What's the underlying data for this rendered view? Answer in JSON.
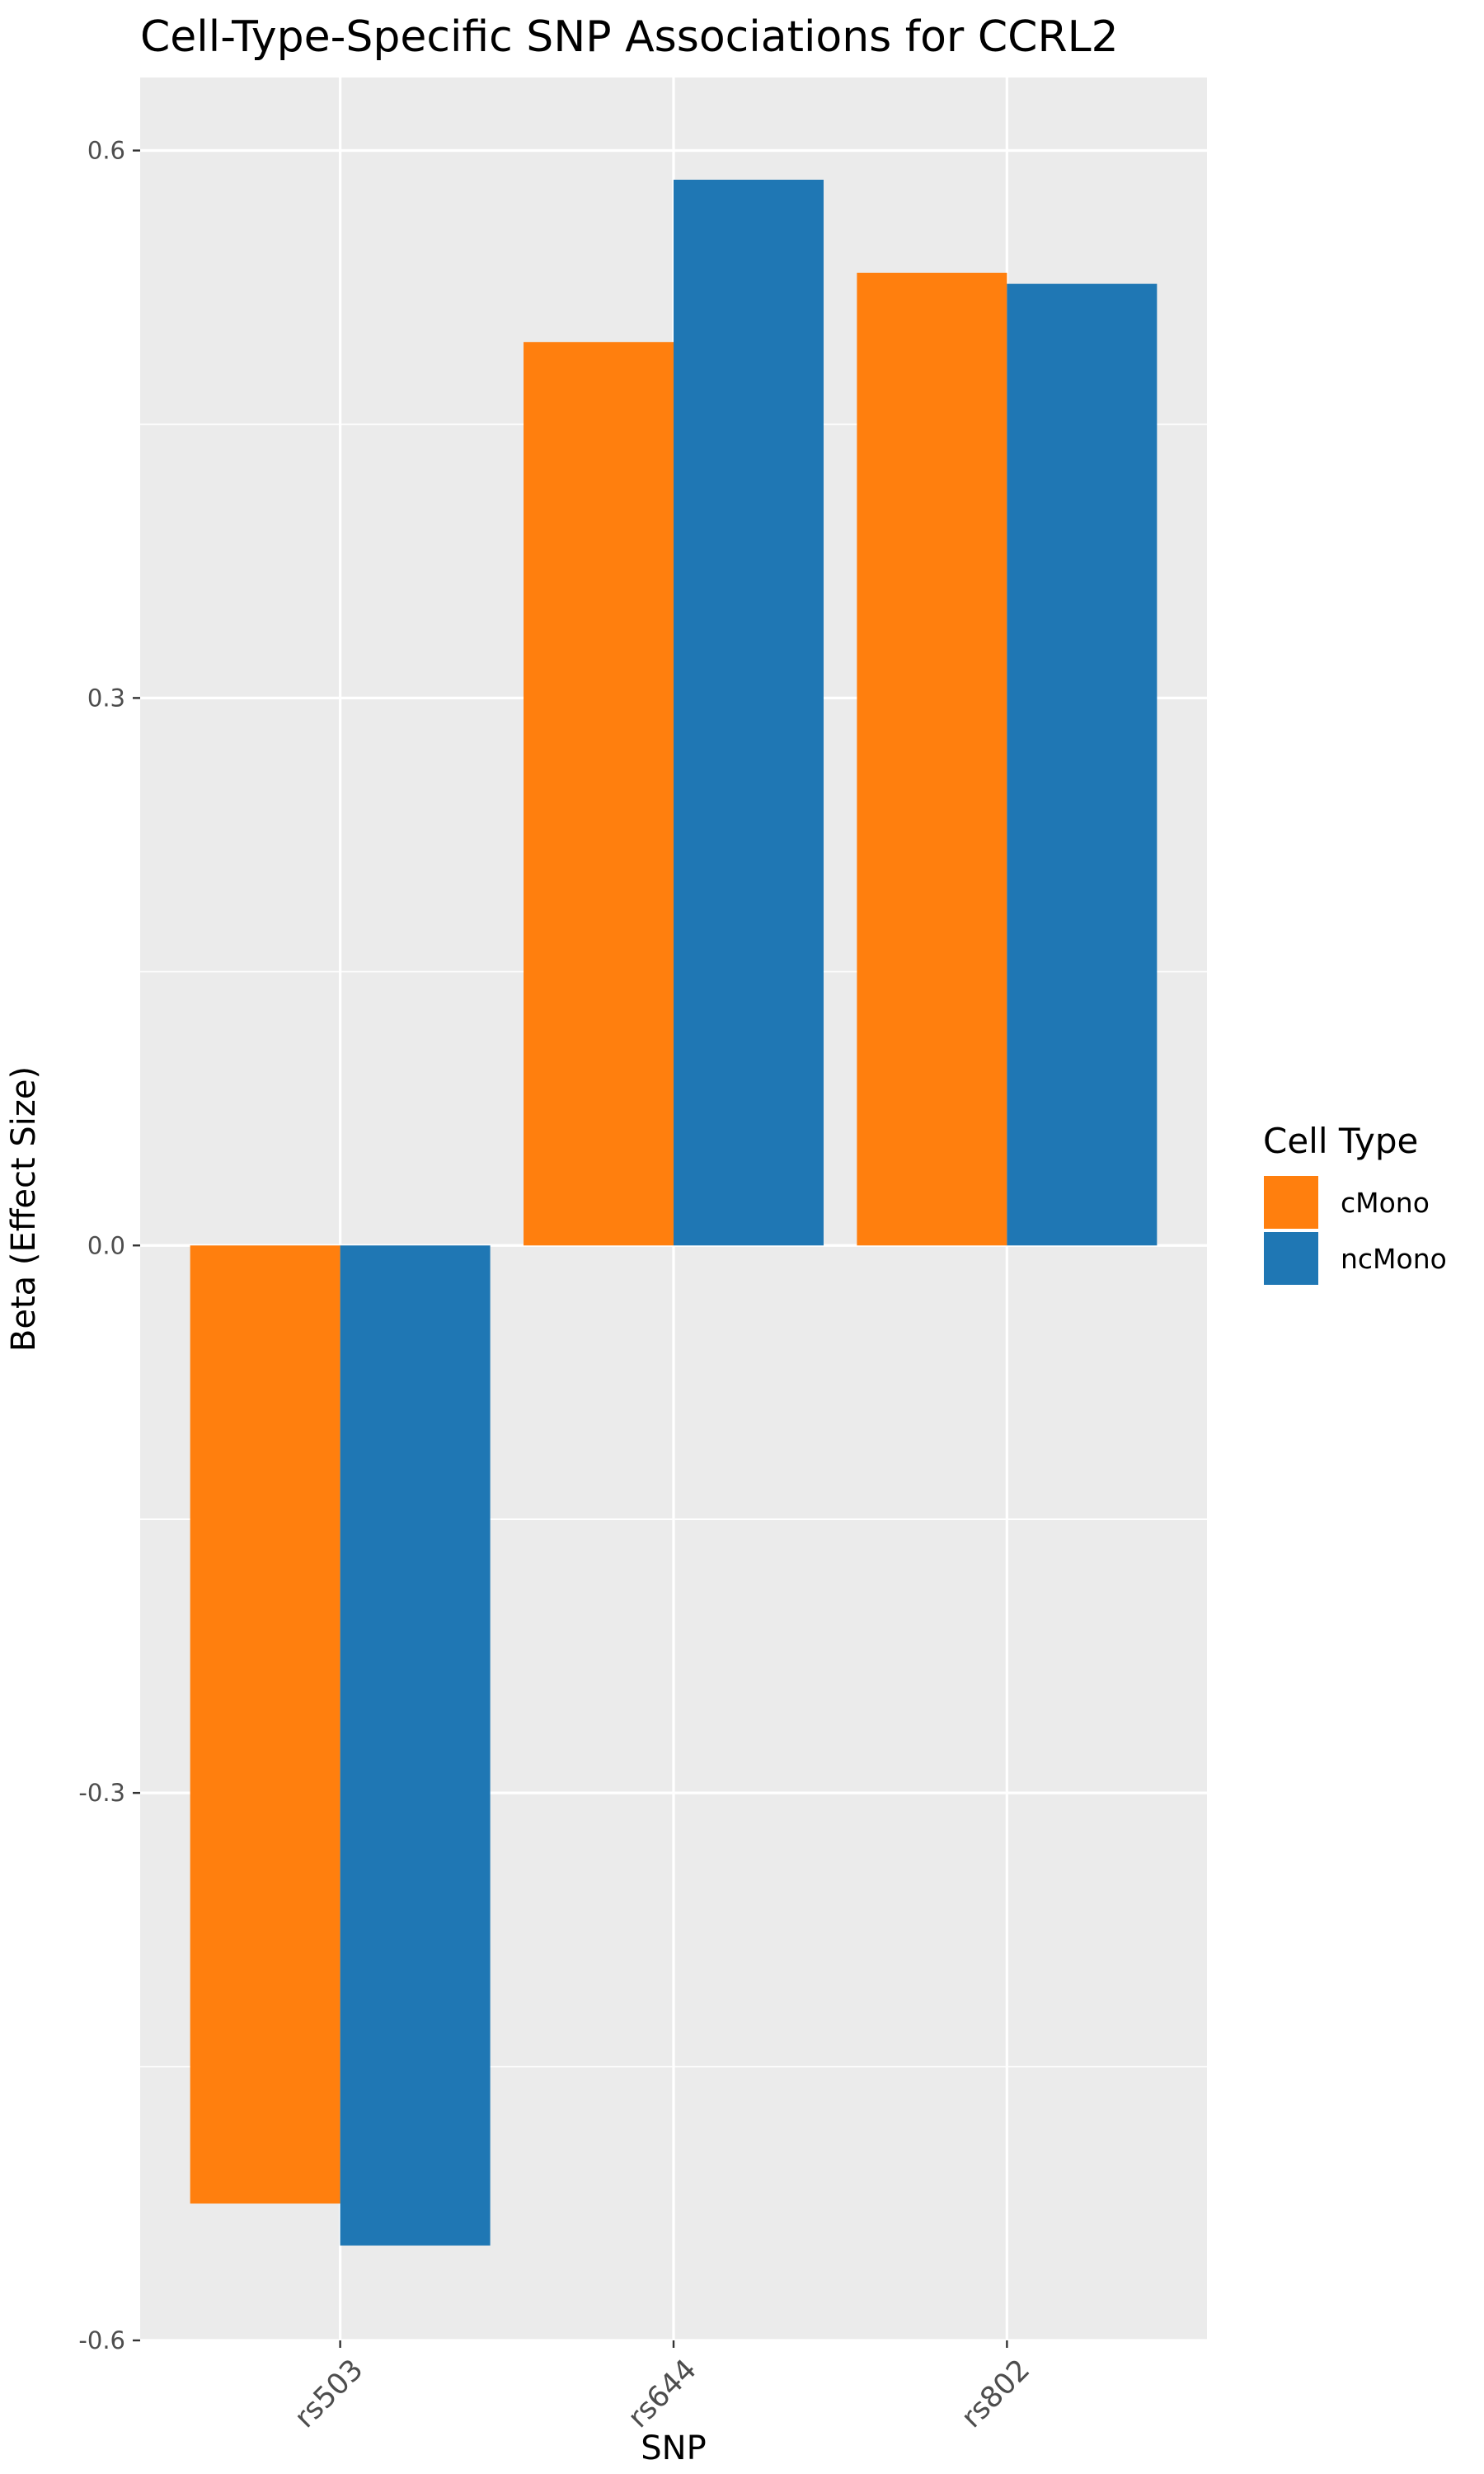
{
  "chart_data": {
    "type": "bar",
    "title": "Cell-Type-Specific SNP Associations for  CCRL2",
    "xlabel": "SNP",
    "ylabel": "Beta (Effect Size)",
    "categories": [
      "rs503",
      "rs644",
      "rs802"
    ],
    "series": [
      {
        "name": "cMono",
        "color": "#ff7f0e",
        "values": [
          -0.525,
          0.495,
          0.533
        ]
      },
      {
        "name": "ncMono",
        "color": "#1f77b4",
        "values": [
          -0.548,
          0.584,
          0.527
        ]
      }
    ],
    "ylim": [
      -0.6,
      0.64
    ],
    "yticks": [
      -0.6,
      -0.3,
      0.0,
      0.3,
      0.6
    ],
    "ytick_labels": [
      "-0.6",
      "-0.3",
      "0.0",
      "0.3",
      "0.6"
    ],
    "grid": true,
    "panel_background": "#ebebeb",
    "legend": {
      "title": "Cell Type",
      "position": "right"
    }
  }
}
